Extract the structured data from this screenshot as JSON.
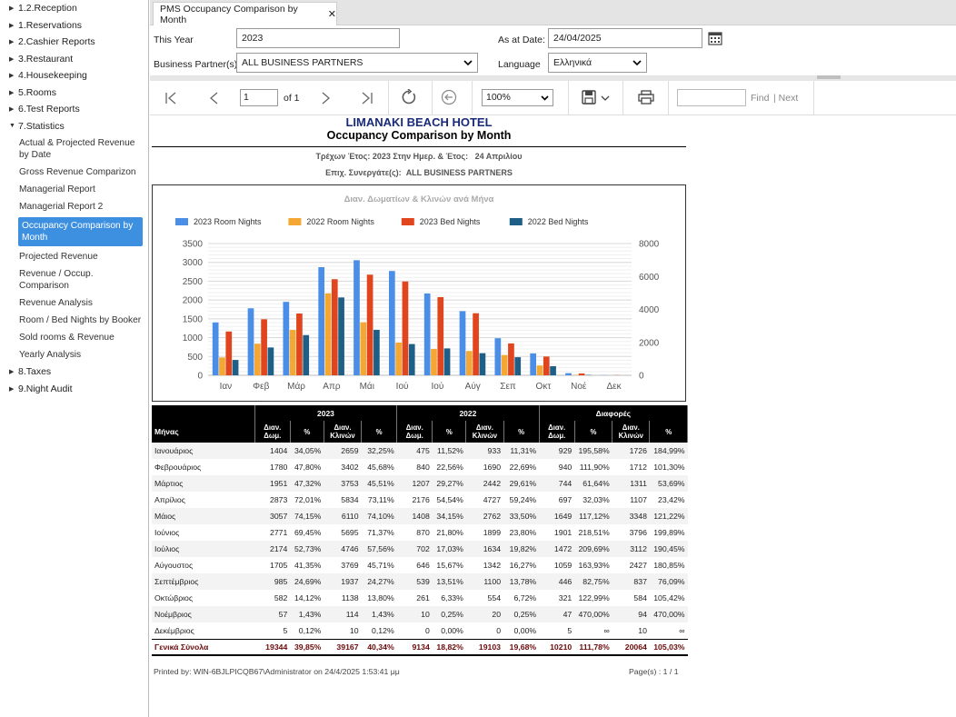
{
  "sidebar": {
    "items": [
      {
        "label": "1.2.Reception",
        "expanded": false
      },
      {
        "label": "1.Reservations",
        "expanded": false
      },
      {
        "label": "2.Cashier Reports",
        "expanded": false
      },
      {
        "label": "3.Restaurant",
        "expanded": false
      },
      {
        "label": "4.Housekeeping",
        "expanded": false
      },
      {
        "label": "5.Rooms",
        "expanded": false
      },
      {
        "label": "6.Test Reports",
        "expanded": false
      },
      {
        "label": "7.Statistics",
        "expanded": true
      }
    ],
    "sub_items": [
      "Actual & Projected Revenue by Date",
      "Gross Revenue Comparizon",
      "Managerial Report",
      "Managerial Report 2",
      "Occupancy Comparison by Month",
      "Projected Revenue",
      "Revenue / Occup. Comparison",
      "Revenue Analysis",
      "Room / Bed Nights by Booker",
      "Sold rooms & Revenue",
      "Yearly Analysis"
    ],
    "active_sub": "Occupancy Comparison by Month",
    "after_items": [
      {
        "label": "8.Taxes"
      },
      {
        "label": "9.Night Audit"
      }
    ]
  },
  "tab": {
    "title": "PMS Occupancy Comparison by Month",
    "close": "✕"
  },
  "params": {
    "this_year_label": "This Year",
    "this_year_value": "2023",
    "as_at_label": "As at Date:",
    "as_at_value": "24/04/2025",
    "bp_label": "Business Partner(s)",
    "bp_value": "ALL BUSINESS PARTNERS",
    "lang_label": "Language",
    "lang_value": "Ελληνικά"
  },
  "toolbar": {
    "page_value": "1",
    "page_of": "of 1",
    "zoom": "100%",
    "find_placeholder": "",
    "find_label": "Find",
    "next_label": "| Next"
  },
  "report": {
    "hotel": "LIMANAKI BEACH HOTEL",
    "title": "Occupancy Comparison by Month",
    "line1_label": "Τρέχων Έτος: 2023 Στην Ημερ. & Έτος:",
    "line1_value": "24 Απριλίου",
    "line2_label": "Επιχ. Συνεργάτε(ς):",
    "line2_value": "ALL BUSINESS PARTNERS",
    "footer_left": "Printed by: WIN-6BJLPICQB67\\Administrator on 24/4/2025 1:53:41 μμ",
    "footer_right": "Page(s) : 1 / 1"
  },
  "chart_data": {
    "type": "bar",
    "title": "Διαν. Δωματίων & Κλινών ανά Μήνα",
    "categories": [
      "Ιαν",
      "Φεβ",
      "Μάρ",
      "Απρ",
      "Μάι",
      "Ιού",
      "Ιού",
      "Αύγ",
      "Σεπ",
      "Οκτ",
      "Νοέ",
      "Δεκ"
    ],
    "ylim_left": [
      0,
      3500
    ],
    "yticks_left": [
      0,
      500,
      1000,
      1500,
      2000,
      2500,
      3000,
      3500
    ],
    "ylim_right": [
      0,
      8000
    ],
    "yticks_right": [
      0,
      2000,
      4000,
      6000,
      8000
    ],
    "grid": true,
    "legend_position": "top-left",
    "series": [
      {
        "name": "2023 Room Nights",
        "color": "#4a8ee8",
        "axis": "left",
        "values": [
          1404,
          1780,
          1951,
          2873,
          3057,
          2771,
          2174,
          1705,
          985,
          582,
          57,
          5
        ]
      },
      {
        "name": "2022 Room Nights",
        "color": "#f5a733",
        "axis": "left",
        "values": [
          475,
          840,
          1207,
          2176,
          1408,
          870,
          702,
          646,
          539,
          261,
          10,
          0
        ]
      },
      {
        "name": "2023 Bed Nights",
        "color": "#e0451e",
        "axis": "right",
        "values": [
          2659,
          3402,
          3753,
          5834,
          6110,
          5695,
          4746,
          3769,
          1937,
          1138,
          114,
          10
        ]
      },
      {
        "name": "2022 Bed Nights",
        "color": "#1d5f87",
        "axis": "right",
        "values": [
          933,
          1690,
          2442,
          4727,
          2762,
          1899,
          1634,
          1342,
          1100,
          554,
          20,
          0
        ]
      }
    ]
  },
  "table": {
    "group_headers": [
      "2023",
      "2022",
      "Διαφορές"
    ],
    "col_headers": [
      "Μήνας",
      "Διαν. Δωμ.",
      "%",
      "Διαν. Κλινών",
      "%",
      "Διαν. Δωμ.",
      "%",
      "Διαν. Κλινών",
      "%",
      "Διαν. Δωμ.",
      "%",
      "Διαν. Κλινών",
      "%"
    ],
    "rows": [
      [
        "Ιανουάριος",
        "1404",
        "34,05%",
        "2659",
        "32,25%",
        "475",
        "11,52%",
        "933",
        "11,31%",
        "929",
        "195,58%",
        "1726",
        "184,99%"
      ],
      [
        "Φεβρουάριος",
        "1780",
        "47,80%",
        "3402",
        "45,68%",
        "840",
        "22,56%",
        "1690",
        "22,69%",
        "940",
        "111,90%",
        "1712",
        "101,30%"
      ],
      [
        "Μάρτιος",
        "1951",
        "47,32%",
        "3753",
        "45,51%",
        "1207",
        "29,27%",
        "2442",
        "29,61%",
        "744",
        "61,64%",
        "1311",
        "53,69%"
      ],
      [
        "Απρίλιος",
        "2873",
        "72,01%",
        "5834",
        "73,11%",
        "2176",
        "54,54%",
        "4727",
        "59,24%",
        "697",
        "32,03%",
        "1107",
        "23,42%"
      ],
      [
        "Μάιος",
        "3057",
        "74,15%",
        "6110",
        "74,10%",
        "1408",
        "34,15%",
        "2762",
        "33,50%",
        "1649",
        "117,12%",
        "3348",
        "121,22%"
      ],
      [
        "Ιούνιος",
        "2771",
        "69,45%",
        "5695",
        "71,37%",
        "870",
        "21,80%",
        "1899",
        "23,80%",
        "1901",
        "218,51%",
        "3796",
        "199,89%"
      ],
      [
        "Ιούλιος",
        "2174",
        "52,73%",
        "4746",
        "57,56%",
        "702",
        "17,03%",
        "1634",
        "19,82%",
        "1472",
        "209,69%",
        "3112",
        "190,45%"
      ],
      [
        "Αύγουστος",
        "1705",
        "41,35%",
        "3769",
        "45,71%",
        "646",
        "15,67%",
        "1342",
        "16,27%",
        "1059",
        "163,93%",
        "2427",
        "180,85%"
      ],
      [
        "Σεπτέμβριος",
        "985",
        "24,69%",
        "1937",
        "24,27%",
        "539",
        "13,51%",
        "1100",
        "13,78%",
        "446",
        "82,75%",
        "837",
        "76,09%"
      ],
      [
        "Οκτώβριος",
        "582",
        "14,12%",
        "1138",
        "13,80%",
        "261",
        "6,33%",
        "554",
        "6,72%",
        "321",
        "122,99%",
        "584",
        "105,42%"
      ],
      [
        "Νοέμβριος",
        "57",
        "1,43%",
        "114",
        "1,43%",
        "10",
        "0,25%",
        "20",
        "0,25%",
        "47",
        "470,00%",
        "94",
        "470,00%"
      ],
      [
        "Δεκέμβριος",
        "5",
        "0,12%",
        "10",
        "0,12%",
        "0",
        "0,00%",
        "0",
        "0,00%",
        "5",
        "∞",
        "10",
        "∞"
      ]
    ],
    "total": [
      "Γενικά Σύνολα",
      "19344",
      "39,85%",
      "39167",
      "40,34%",
      "9134",
      "18,82%",
      "19103",
      "19,68%",
      "10210",
      "111,78%",
      "20064",
      "105,03%"
    ]
  }
}
